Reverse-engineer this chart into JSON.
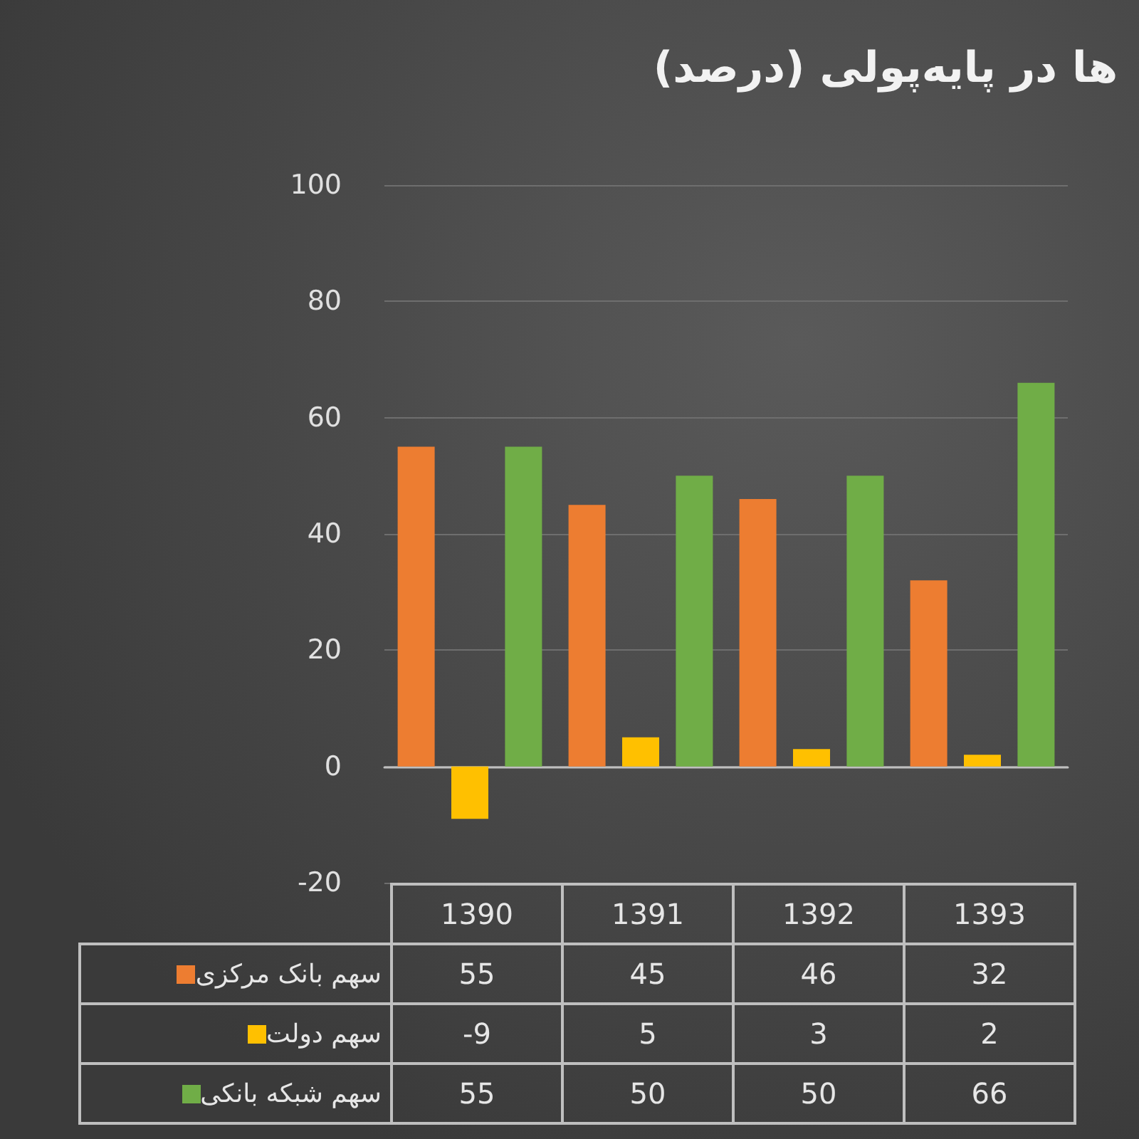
{
  "chart_data": {
    "type": "bar",
    "title": "ها در پایه‌پولی (درصد)",
    "categories": [
      "1390",
      "1391",
      "1392",
      "1393"
    ],
    "series": [
      {
        "name": "سهم بانک مرکزی",
        "color": "#ed7d31",
        "values": [
          55,
          45,
          46,
          32
        ]
      },
      {
        "name": "سهم دولت",
        "color": "#ffc000",
        "values": [
          -9,
          5,
          3,
          2
        ]
      },
      {
        "name": "سهم شبکه بانکی",
        "color": "#70ad47",
        "values": [
          55,
          50,
          50,
          66
        ]
      }
    ],
    "ylim": [
      -20,
      100
    ],
    "yticks": [
      -20,
      0,
      20,
      40,
      60,
      80,
      100
    ],
    "grid": "y",
    "legend": "bottom",
    "data_labels": true
  }
}
